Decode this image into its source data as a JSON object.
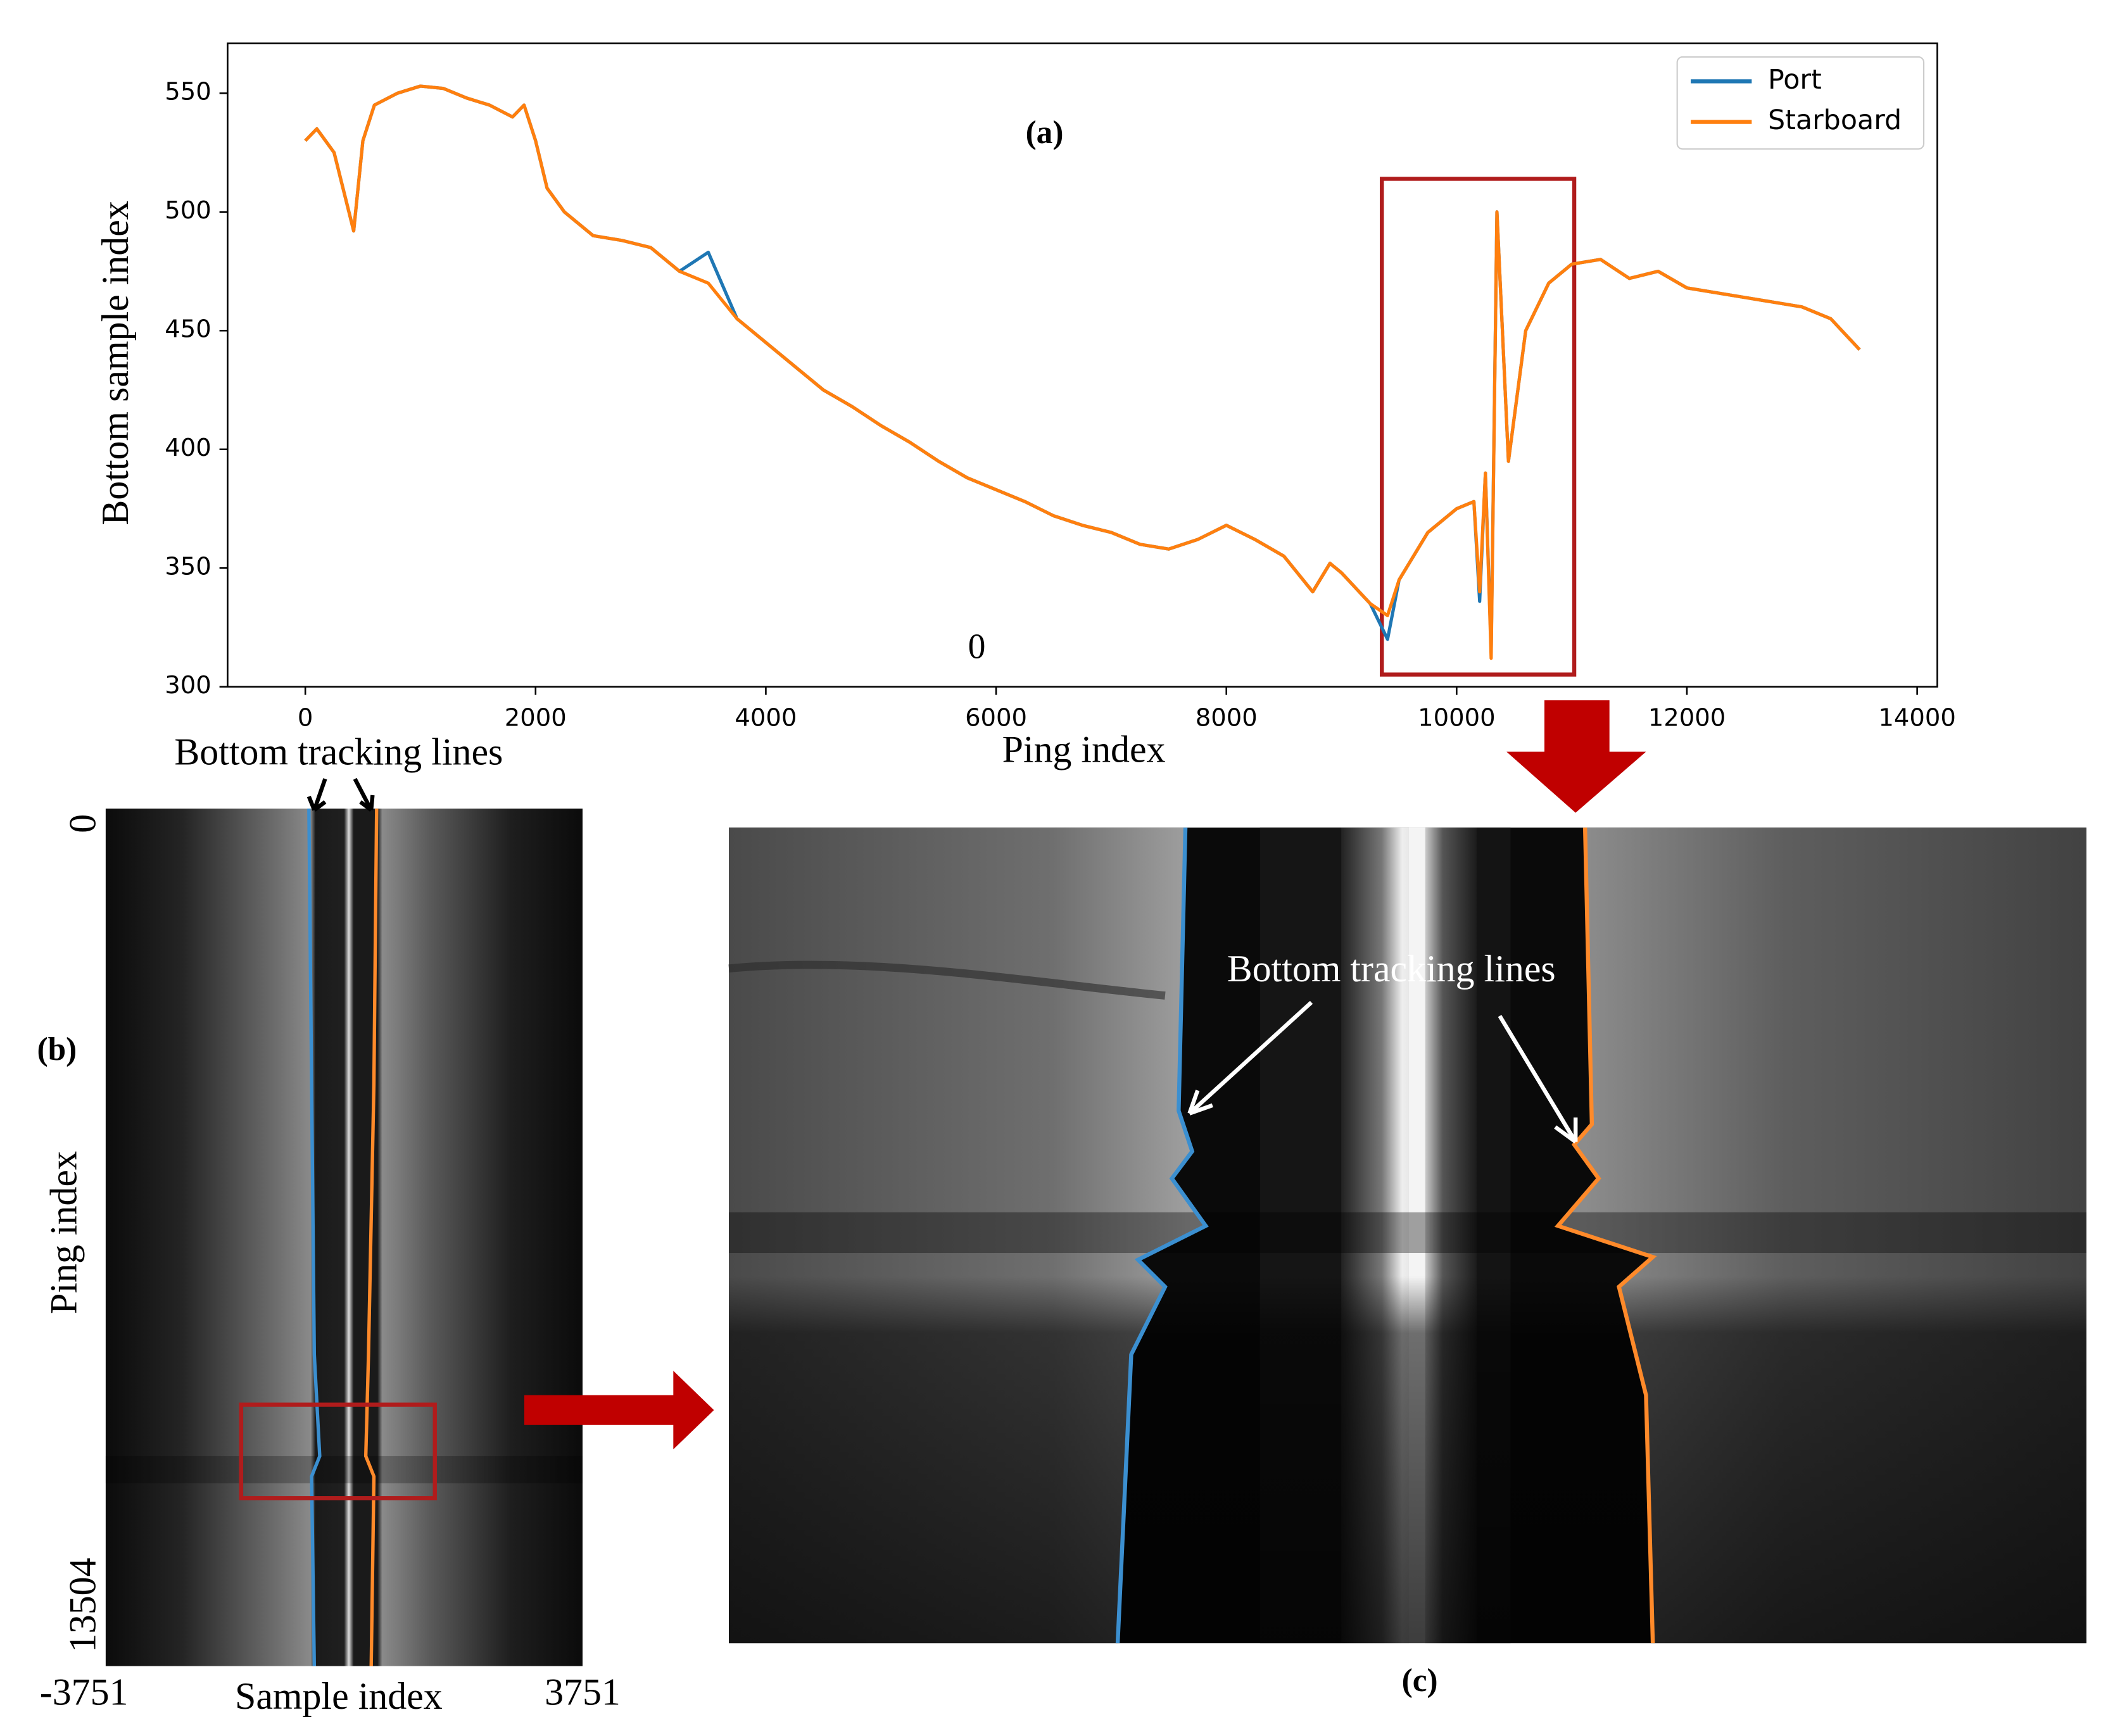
{
  "chart_data": {
    "type": "line",
    "panel_label": "(a)",
    "annotation": "0",
    "x_label": "Ping index",
    "y_label": "Bottom sample index",
    "x": [
      0,
      100,
      250,
      420,
      500,
      600,
      800,
      1000,
      1200,
      1400,
      1600,
      1800,
      1900,
      2000,
      2100,
      2250,
      2500,
      2750,
      3000,
      3250,
      3500,
      3750,
      4000,
      4250,
      4500,
      4750,
      5000,
      5250,
      5500,
      5750,
      6000,
      6250,
      6500,
      6750,
      7000,
      7250,
      7500,
      7750,
      8000,
      8250,
      8500,
      8750,
      8900,
      9000,
      9250,
      9400,
      9500,
      9750,
      10000,
      10150,
      10200,
      10250,
      10300,
      10350,
      10450,
      10600,
      10800,
      11000,
      11250,
      11500,
      11750,
      12000,
      12500,
      13000,
      13250,
      13500
    ],
    "series": [
      {
        "name": "Port",
        "color": "#1f77b4",
        "values": [
          530,
          535,
          525,
          492,
          530,
          545,
          550,
          553,
          552,
          548,
          545,
          540,
          545,
          530,
          510,
          500,
          490,
          488,
          485,
          475,
          483,
          455,
          445,
          435,
          425,
          418,
          410,
          403,
          395,
          388,
          383,
          378,
          372,
          368,
          365,
          360,
          358,
          362,
          368,
          362,
          355,
          340,
          352,
          348,
          335,
          320,
          345,
          365,
          375,
          378,
          336,
          390,
          315,
          500,
          395,
          450,
          470,
          478,
          480,
          472,
          475,
          468,
          464,
          460,
          455,
          442
        ]
      },
      {
        "name": "Starboard",
        "color": "#ff7f0e",
        "values": [
          530,
          535,
          525,
          492,
          530,
          545,
          550,
          553,
          552,
          548,
          545,
          540,
          545,
          530,
          510,
          500,
          490,
          488,
          485,
          475,
          470,
          455,
          445,
          435,
          425,
          418,
          410,
          403,
          395,
          388,
          383,
          378,
          372,
          368,
          365,
          360,
          358,
          362,
          368,
          362,
          355,
          340,
          352,
          348,
          335,
          330,
          345,
          365,
          375,
          378,
          340,
          390,
          312,
          500,
          395,
          450,
          470,
          478,
          480,
          472,
          475,
          468,
          464,
          460,
          455,
          442
        ]
      }
    ],
    "xlim": [
      -675,
      14175
    ],
    "ylim": [
      300,
      571
    ],
    "xticks": [
      0,
      2000,
      4000,
      6000,
      8000,
      10000,
      12000,
      14000
    ],
    "yticks": [
      300,
      350,
      400,
      450,
      500,
      550
    ],
    "legend": "upper right",
    "grid": false
  },
  "panel_b": {
    "label": "(b)",
    "annotation": "Bottom tracking lines",
    "y_axis_label": "Ping index",
    "y_start": "0",
    "y_end": "13504",
    "x_axis_label": "Sample index",
    "x_start": "-3751",
    "x_end": "3751"
  },
  "panel_c": {
    "label": "(c)",
    "annotation": "Bottom tracking lines"
  }
}
